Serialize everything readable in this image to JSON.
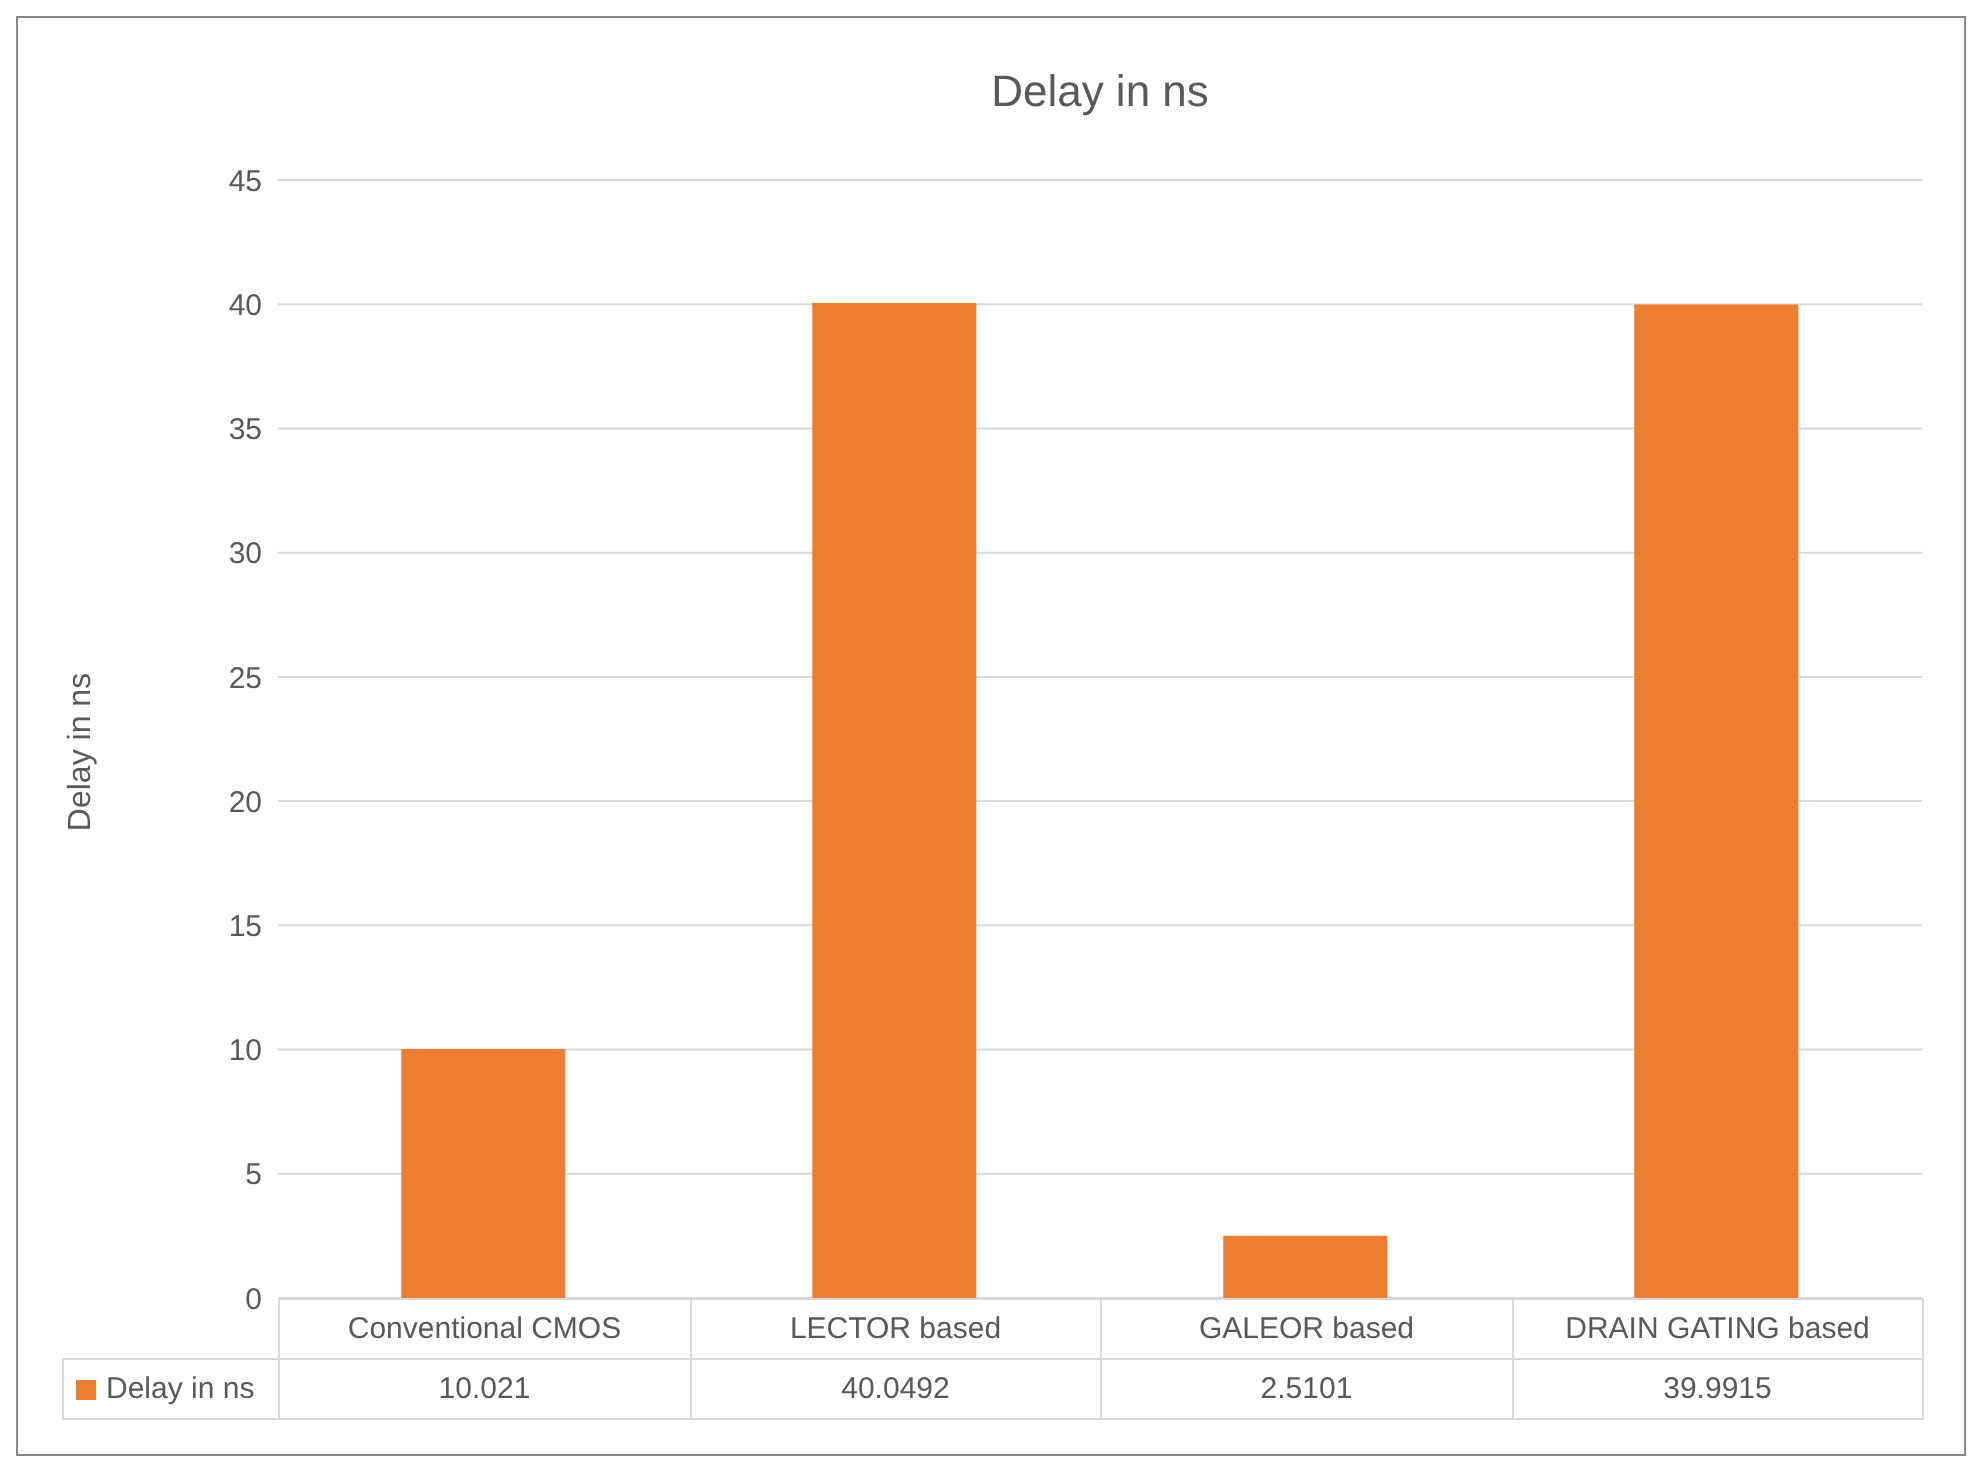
{
  "chart_data": {
    "type": "bar",
    "title": "Delay in ns",
    "ylabel": "Delay in ns",
    "categories": [
      "Conventional CMOS",
      "LECTOR based",
      "GALEOR based",
      "DRAIN GATING based"
    ],
    "series": [
      {
        "name": "Delay in ns",
        "color": "#ed7d31",
        "values": [
          10.021,
          40.0492,
          2.5101,
          39.9915
        ]
      }
    ],
    "ylim": [
      0,
      45
    ],
    "yticks": [
      0,
      5,
      10,
      15,
      20,
      25,
      30,
      35,
      40,
      45
    ],
    "grid": "y",
    "legend": "bottom",
    "data_labels": true
  }
}
